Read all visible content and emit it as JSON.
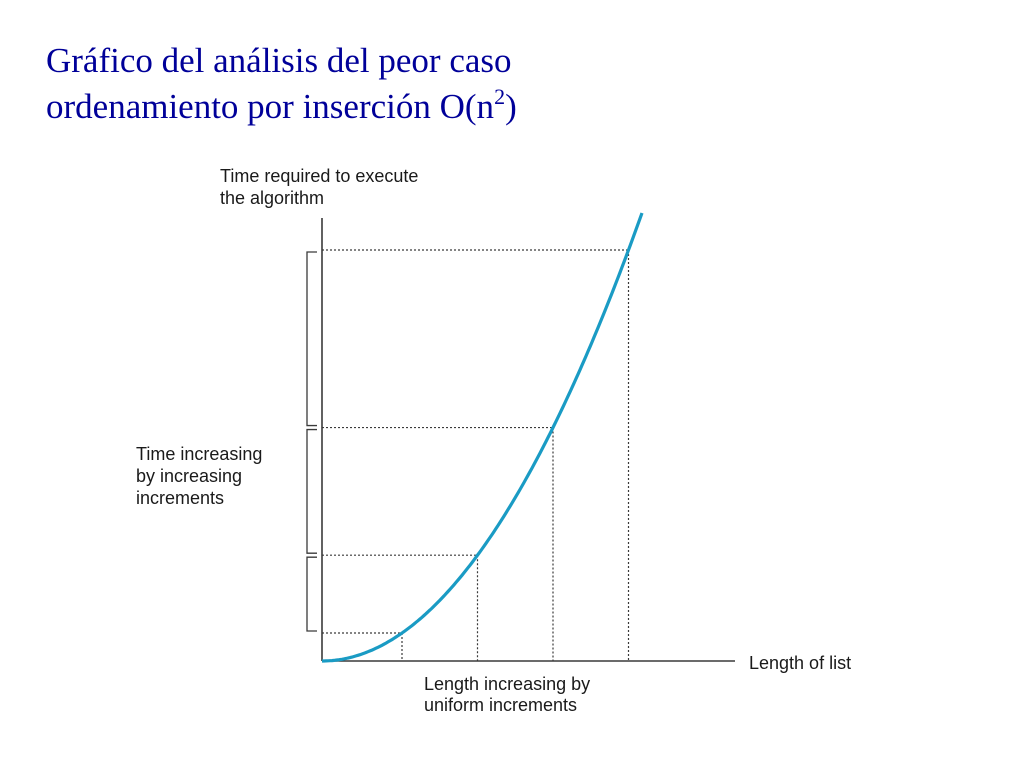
{
  "title": {
    "line1": "Gráfico del análisis del peor caso",
    "line2_prefix": "ordenamiento por inserción O(n",
    "line2_sup": "2",
    "line2_suffix": ")"
  },
  "diagram": {
    "y_axis_label": [
      "Time required to execute",
      "the algorithm"
    ],
    "x_axis_label": "Length of list",
    "time_annotation": [
      "Time increasing",
      "by increasing",
      "increments"
    ],
    "length_annotation": [
      "Length increasing by",
      "uniform increments"
    ],
    "curve_color": "#1a9bc4",
    "axis_color": "#3a3a3a",
    "uniform_x_steps": 4
  }
}
